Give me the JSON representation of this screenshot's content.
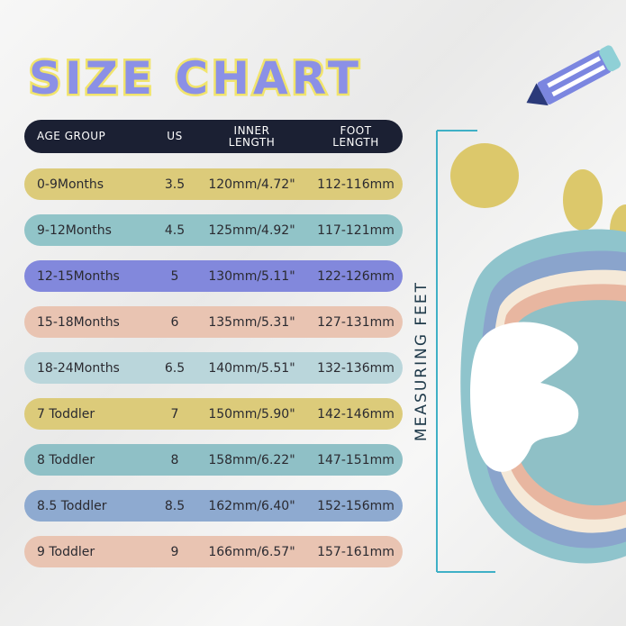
{
  "title": "SIZE CHART",
  "side_label": "MEASURING FEET",
  "colors": {
    "title_fill": "#8b90e6",
    "title_outline": "#f1e46c",
    "header_bg": "#1b2033"
  },
  "table": {
    "headers": {
      "age_group": "AGE GROUP",
      "us": "US",
      "inner_length_1": "INNER",
      "inner_length_2": "LENGTH",
      "foot_length_1": "FOOT",
      "foot_length_2": "LENGTH"
    },
    "rows": [
      {
        "age": "0-9Months",
        "us": "3.5",
        "inner": "120mm/4.72\"",
        "foot": "112-116mm",
        "color": "#dccb7a"
      },
      {
        "age": "9-12Months",
        "us": "4.5",
        "inner": "125mm/4.92\"",
        "foot": "117-121mm",
        "color": "#91c4c8"
      },
      {
        "age": "12-15Months",
        "us": "5",
        "inner": "130mm/5.11\"",
        "foot": "122-126mm",
        "color": "#8288dc"
      },
      {
        "age": "15-18Months",
        "us": "6",
        "inner": "135mm/5.31\"",
        "foot": "127-131mm",
        "color": "#e9c4b2"
      },
      {
        "age": "18-24Months",
        "us": "6.5",
        "inner": "140mm/5.51\"",
        "foot": "132-136mm",
        "color": "#bad6db"
      },
      {
        "age": "7 Toddler",
        "us": "7",
        "inner": "150mm/5.90\"",
        "foot": "142-146mm",
        "color": "#dccb7a"
      },
      {
        "age": "8 Toddler",
        "us": "8",
        "inner": "158mm/6.22\"",
        "foot": "147-151mm",
        "color": "#8fc0c6"
      },
      {
        "age": "8.5 Toddler",
        "us": "8.5",
        "inner": "162mm/6.40\"",
        "foot": "152-156mm",
        "color": "#8eaad0"
      },
      {
        "age": "9 Toddler",
        "us": "9",
        "inner": "166mm/6.57\"",
        "foot": "157-161mm",
        "color": "#e9c4b2"
      }
    ]
  }
}
